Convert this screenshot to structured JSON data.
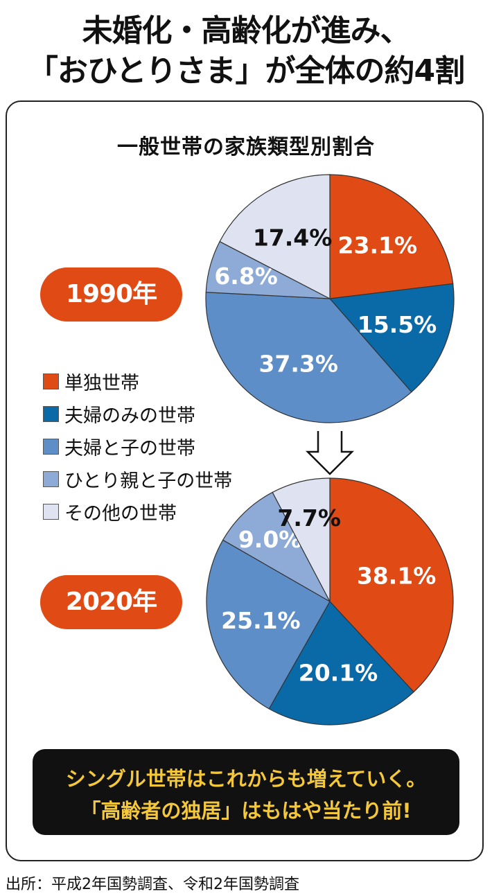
{
  "headline": {
    "line1": "未婚化・高齢化が進み、",
    "line2": "「おひとりさま」が全体の約4割"
  },
  "colors": {
    "single": "#e04a15",
    "couple_only": "#0a6aa8",
    "couple_with_children": "#5d8ec7",
    "single_parent": "#8eaad6",
    "other": "#dfe3f1",
    "pill": "#e04a15",
    "callout_text": "#f5c83a"
  },
  "chart_data": {
    "type": "pie",
    "title": "一般世帯の家族類型別割合",
    "categories": [
      "単独世帯",
      "夫婦のみの世帯",
      "夫婦と子の世帯",
      "ひとり親と子の世帯",
      "その他の世帯"
    ],
    "series": [
      {
        "name": "1990年",
        "values": [
          23.1,
          15.5,
          37.3,
          6.8,
          17.4
        ],
        "labels": [
          "23.1%",
          "15.5%",
          "37.3%",
          "6.8%",
          "17.4%"
        ]
      },
      {
        "name": "2020年",
        "values": [
          38.1,
          20.1,
          25.1,
          9.0,
          7.7
        ],
        "labels": [
          "38.1%",
          "20.1%",
          "25.1%",
          "9.0%",
          "7.7%"
        ]
      }
    ],
    "legend_position": "left"
  },
  "legend": {
    "items": [
      {
        "label": "単独世帯",
        "color": "#e04a15"
      },
      {
        "label": "夫婦のみの世帯",
        "color": "#0a6aa8"
      },
      {
        "label": "夫婦と子の世帯",
        "color": "#5d8ec7"
      },
      {
        "label": "ひとり親と子の世帯",
        "color": "#8eaad6"
      },
      {
        "label": "その他の世帯",
        "color": "#dfe3f1"
      }
    ]
  },
  "callout": {
    "line1": "シングル世帯はこれからも増えていく。",
    "line2": "「高齢者の独居」はもはや当たり前!"
  },
  "source": "出所：平成2年国勢調査、令和2年国勢調査"
}
